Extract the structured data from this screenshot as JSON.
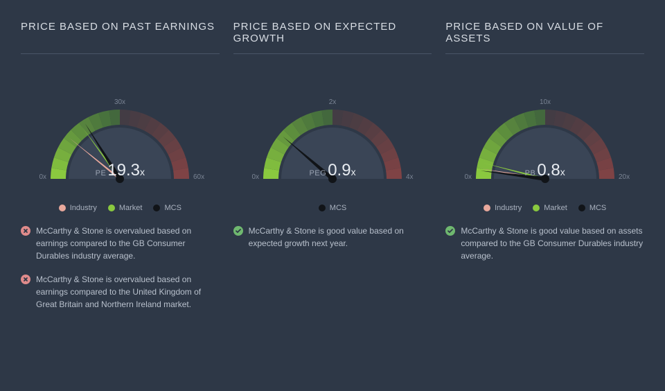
{
  "background_color": "#2e3847",
  "panels": [
    {
      "title": "PRICE BASED ON PAST EARNINGS",
      "gauge": {
        "type": "gauge",
        "min": 0,
        "max": 60,
        "mid": 30,
        "min_label": "0x",
        "mid_label": "30x",
        "max_label": "60x",
        "good_color_start": "#4a7a3a",
        "good_color_end": "#8ac93f",
        "bad_color_start": "#5a4040",
        "bad_color_end": "#8b4545",
        "face_color": "#3a4556",
        "needles": [
          {
            "name": "industry",
            "value": 13,
            "color": "#e8a89c",
            "width": 3
          },
          {
            "name": "market",
            "value": 18,
            "color": "#8ac93f",
            "width": 3
          },
          {
            "name": "mcs",
            "value": 19.3,
            "color": "#111418",
            "width": 6
          }
        ],
        "metric_label": "PE",
        "metric_value": "19.3",
        "metric_suffix": "x"
      },
      "legend": [
        {
          "label": "Industry",
          "color": "#e8a89c"
        },
        {
          "label": "Market",
          "color": "#8ac93f"
        },
        {
          "label": "MCS",
          "color": "#111418"
        }
      ],
      "notes": [
        {
          "status": "bad",
          "text": "McCarthy & Stone is overvalued based on earnings compared to the GB Consumer Durables industry average."
        },
        {
          "status": "bad",
          "text": "McCarthy & Stone is overvalued based on earnings compared to the United Kingdom of Great Britain and Northern Ireland market."
        }
      ]
    },
    {
      "title": "PRICE BASED ON EXPECTED GROWTH",
      "gauge": {
        "type": "gauge",
        "min": 0,
        "max": 4,
        "mid": 2,
        "min_label": "0x",
        "mid_label": "2x",
        "max_label": "4x",
        "good_color_start": "#4a7a3a",
        "good_color_end": "#8ac93f",
        "bad_color_start": "#5a4040",
        "bad_color_end": "#8b4545",
        "face_color": "#3a4556",
        "needles": [
          {
            "name": "mcs",
            "value": 0.9,
            "color": "#111418",
            "width": 6
          }
        ],
        "metric_label": "PEG",
        "metric_value": "0.9",
        "metric_suffix": "x"
      },
      "legend": [
        {
          "label": "MCS",
          "color": "#111418"
        }
      ],
      "notes": [
        {
          "status": "good",
          "text": "McCarthy & Stone is good value based on expected growth next year."
        }
      ]
    },
    {
      "title": "PRICE BASED ON VALUE OF ASSETS",
      "gauge": {
        "type": "gauge",
        "min": 0,
        "max": 20,
        "mid": 10,
        "min_label": "0x",
        "mid_label": "10x",
        "max_label": "20x",
        "good_color_start": "#4a7a3a",
        "good_color_end": "#8ac93f",
        "bad_color_start": "#5a4040",
        "bad_color_end": "#8b4545",
        "face_color": "#3a4556",
        "needles": [
          {
            "name": "industry",
            "value": 1.0,
            "color": "#e8a89c",
            "width": 3
          },
          {
            "name": "market",
            "value": 1.6,
            "color": "#8ac93f",
            "width": 3
          },
          {
            "name": "mcs",
            "value": 0.8,
            "color": "#111418",
            "width": 6
          }
        ],
        "metric_label": "PB",
        "metric_value": "0.8",
        "metric_suffix": "x"
      },
      "legend": [
        {
          "label": "Industry",
          "color": "#e8a89c"
        },
        {
          "label": "Market",
          "color": "#8ac93f"
        },
        {
          "label": "MCS",
          "color": "#111418"
        }
      ],
      "notes": [
        {
          "status": "good",
          "text": "McCarthy & Stone is good value based on assets compared to the GB Consumer Durables industry average."
        }
      ]
    }
  ]
}
